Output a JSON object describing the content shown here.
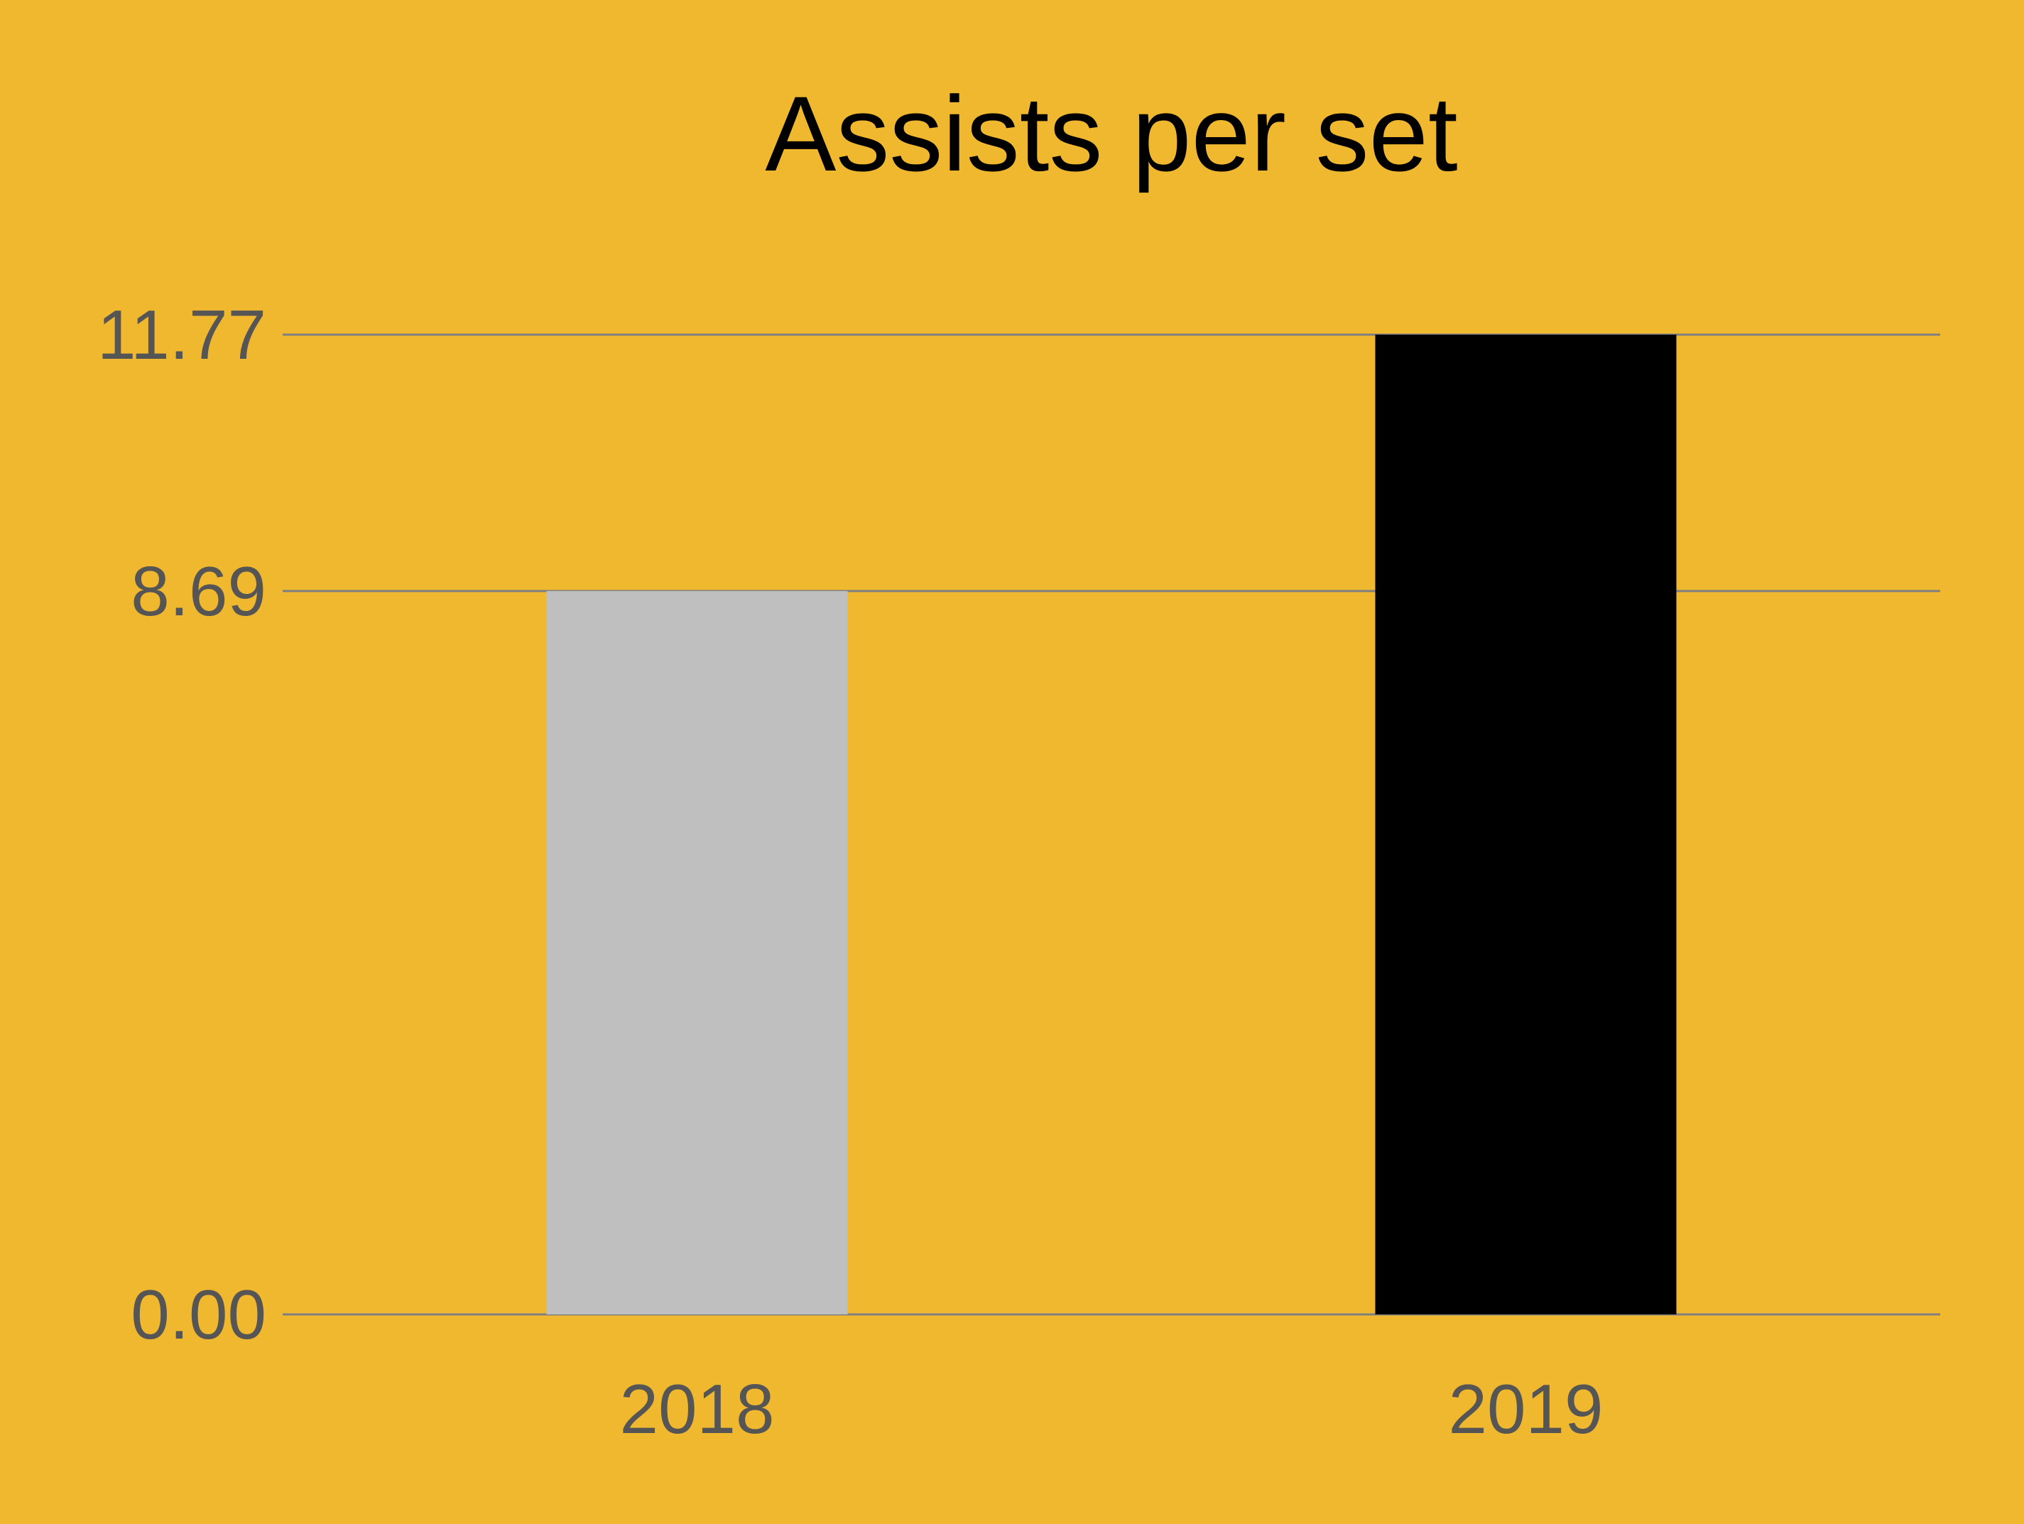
{
  "colors": {
    "background": "#F0B82F",
    "title": "#000000",
    "tick_label": "#555555",
    "gridline": "#7F7F7F"
  },
  "chart_data": {
    "type": "bar",
    "title": "Assists per set",
    "xlabel": "",
    "ylabel": "",
    "categories": [
      "2018",
      "2019"
    ],
    "values": [
      8.69,
      11.77
    ],
    "bar_colors": [
      "#BFBFBF",
      "#000000"
    ],
    "yticks": [
      0.0,
      8.69,
      11.77
    ],
    "ytick_labels": [
      "0.00",
      "8.69",
      "11.77"
    ],
    "ylim": [
      0,
      11.77
    ],
    "grid": true,
    "legend": "none"
  }
}
